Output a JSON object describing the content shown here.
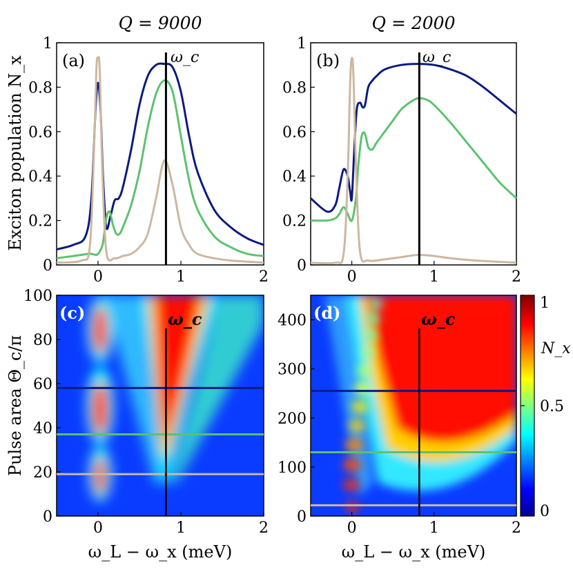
{
  "chart_data": [
    {
      "panel": "(a)",
      "type": "line",
      "title": "Q = 9000",
      "ylabel": "Exciton population N_x",
      "xlim": [
        -0.5,
        2
      ],
      "ylim": [
        0,
        1
      ],
      "x_ticks": [
        "0",
        "1",
        "2"
      ],
      "y_ticks": [
        "0",
        "0.2",
        "0.4",
        "0.6",
        "0.8",
        "1"
      ],
      "vline_x": 0.82,
      "vline_label": "ω_c",
      "series": [
        {
          "color": "#0b1a80",
          "x": [
            -0.5,
            -0.3,
            -0.15,
            -0.08,
            -0.03,
            0,
            0.03,
            0.06,
            0.1,
            0.15,
            0.2,
            0.25,
            0.3,
            0.4,
            0.5,
            0.6,
            0.7,
            0.8,
            0.9,
            1.0,
            1.1,
            1.2,
            1.4,
            1.6,
            1.8,
            2.0
          ],
          "y": [
            0.07,
            0.09,
            0.13,
            0.3,
            0.7,
            0.82,
            0.7,
            0.4,
            0.17,
            0.22,
            0.29,
            0.3,
            0.35,
            0.52,
            0.72,
            0.85,
            0.9,
            0.905,
            0.89,
            0.78,
            0.58,
            0.42,
            0.25,
            0.17,
            0.12,
            0.09
          ]
        },
        {
          "color": "#5cc26e",
          "x": [
            -0.5,
            -0.3,
            -0.1,
            -0.02,
            0.02,
            0.06,
            0.1,
            0.14,
            0.18,
            0.22,
            0.26,
            0.3,
            0.4,
            0.5,
            0.6,
            0.7,
            0.8,
            0.9,
            1.0,
            1.1,
            1.2,
            1.4,
            1.6,
            1.8,
            2.0
          ],
          "y": [
            0.03,
            0.04,
            0.05,
            0.045,
            0.06,
            0.1,
            0.21,
            0.24,
            0.18,
            0.14,
            0.14,
            0.17,
            0.27,
            0.42,
            0.62,
            0.77,
            0.83,
            0.78,
            0.58,
            0.38,
            0.25,
            0.13,
            0.08,
            0.05,
            0.04
          ]
        },
        {
          "color": "#cdb79e",
          "x": [
            -0.5,
            -0.2,
            -0.1,
            -0.05,
            -0.02,
            0,
            0.02,
            0.05,
            0.1,
            0.2,
            0.3,
            0.4,
            0.5,
            0.6,
            0.7,
            0.8,
            0.9,
            1.0,
            1.1,
            1.2,
            1.4,
            1.6,
            1.8,
            2.0
          ],
          "y": [
            0.01,
            0.02,
            0.08,
            0.5,
            0.88,
            0.93,
            0.88,
            0.45,
            0.06,
            0.03,
            0.04,
            0.05,
            0.08,
            0.14,
            0.3,
            0.47,
            0.36,
            0.17,
            0.09,
            0.05,
            0.03,
            0.02,
            0.015,
            0.01
          ]
        }
      ]
    },
    {
      "panel": "(b)",
      "type": "line",
      "title": "Q = 2000",
      "xlim": [
        -0.5,
        2
      ],
      "ylim": [
        0,
        1
      ],
      "x_ticks": [
        "0",
        "1",
        "2"
      ],
      "y_ticks": [
        "0",
        "0.2",
        "0.4",
        "0.6",
        "0.8",
        "1"
      ],
      "vline_x": 0.82,
      "vline_label": "ω_c",
      "series": [
        {
          "color": "#0b1a80",
          "x": [
            -0.5,
            -0.3,
            -0.2,
            -0.15,
            -0.1,
            -0.05,
            -0.02,
            0,
            0.03,
            0.06,
            0.1,
            0.13,
            0.16,
            0.2,
            0.25,
            0.3,
            0.4,
            0.6,
            0.8,
            1.0,
            1.2,
            1.4,
            1.6,
            1.8,
            2.0
          ],
          "y": [
            0.3,
            0.24,
            0.27,
            0.35,
            0.43,
            0.4,
            0.33,
            0.3,
            0.52,
            0.7,
            0.73,
            0.71,
            0.72,
            0.8,
            0.83,
            0.85,
            0.88,
            0.9,
            0.905,
            0.9,
            0.88,
            0.85,
            0.8,
            0.74,
            0.68
          ]
        },
        {
          "color": "#5cc26e",
          "x": [
            -0.5,
            -0.3,
            -0.2,
            -0.15,
            -0.1,
            -0.05,
            0,
            0.05,
            0.08,
            0.12,
            0.16,
            0.2,
            0.25,
            0.3,
            0.4,
            0.5,
            0.6,
            0.7,
            0.8,
            0.9,
            1.0,
            1.2,
            1.4,
            1.6,
            1.8,
            2.0
          ],
          "y": [
            0.2,
            0.2,
            0.21,
            0.23,
            0.26,
            0.23,
            0.2,
            0.3,
            0.45,
            0.58,
            0.59,
            0.53,
            0.52,
            0.55,
            0.6,
            0.65,
            0.7,
            0.73,
            0.75,
            0.745,
            0.72,
            0.64,
            0.55,
            0.46,
            0.37,
            0.3
          ]
        },
        {
          "color": "#cdb79e",
          "x": [
            -0.5,
            -0.2,
            -0.1,
            -0.05,
            -0.02,
            0,
            0.02,
            0.05,
            0.1,
            0.2,
            0.4,
            0.6,
            0.8,
            1.0,
            1.2,
            1.5,
            2.0
          ],
          "y": [
            0.01,
            0.01,
            0.05,
            0.4,
            0.82,
            0.93,
            0.85,
            0.45,
            0.06,
            0.02,
            0.025,
            0.035,
            0.045,
            0.04,
            0.03,
            0.02,
            0.01
          ]
        }
      ]
    },
    {
      "panel": "(c)",
      "type": "heatmap",
      "xlabel": "ω_L − ω_x (meV)",
      "ylabel": "Pulse area Θ_c/π",
      "xlim": [
        -0.5,
        2
      ],
      "ylim": [
        0,
        100
      ],
      "x_ticks": [
        "0",
        "1",
        "2"
      ],
      "y_ticks": [
        "0",
        "20",
        "40",
        "60",
        "80",
        "100"
      ],
      "vline_x": 0.82,
      "vline_label": "ω_c",
      "hlines": [
        {
          "y": 58,
          "color": "#0b1a80"
        },
        {
          "y": 37,
          "color": "#5cc26e"
        },
        {
          "y": 19,
          "color": "#cdb79e"
        }
      ]
    },
    {
      "panel": "(d)",
      "type": "heatmap",
      "xlabel": "ω_L − ω_x (meV)",
      "xlim": [
        -0.5,
        2
      ],
      "ylim": [
        0,
        450
      ],
      "x_ticks": [
        "0",
        "1",
        "2"
      ],
      "y_ticks": [
        "0",
        "100",
        "200",
        "300",
        "400"
      ],
      "vline_x": 0.82,
      "vline_label": "ω_c",
      "hlines": [
        {
          "y": 255,
          "color": "#0b1a80"
        },
        {
          "y": 130,
          "color": "#5cc26e"
        },
        {
          "y": 22,
          "color": "#cdb79e"
        }
      ],
      "colorbar": {
        "label": "N_x",
        "ticks": [
          "0",
          "0.5",
          "1"
        ],
        "range": [
          0,
          1
        ]
      }
    }
  ]
}
